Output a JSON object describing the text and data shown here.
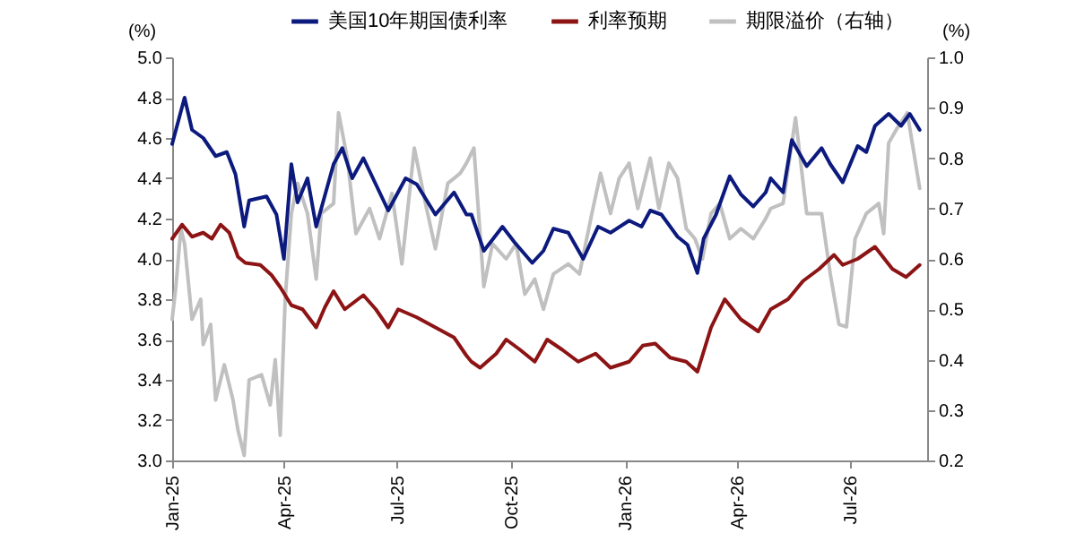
{
  "chart_data": {
    "type": "line",
    "ylabel": "(%)",
    "y2label": "(%)",
    "xlim": [
      "2025-01-01",
      "2026-09-01"
    ],
    "xticks": [
      {
        "value": "2025-01-01",
        "label": "Jan-25"
      },
      {
        "value": "2025-04-01",
        "label": "Apr-25"
      },
      {
        "value": "2025-07-01",
        "label": "Jul-25"
      },
      {
        "value": "2025-10-01",
        "label": "Oct-25"
      },
      {
        "value": "2026-01-01",
        "label": "Jan-26"
      },
      {
        "value": "2026-04-01",
        "label": "Apr-26"
      },
      {
        "value": "2026-07-01",
        "label": "Jul-26"
      }
    ],
    "ylim": [
      3,
      5
    ],
    "yticks": [
      {
        "value": 3,
        "label": "3.0"
      },
      {
        "value": 3.2,
        "label": "3.2"
      },
      {
        "value": 3.4,
        "label": "3.4"
      },
      {
        "value": 3.6,
        "label": "3.6"
      },
      {
        "value": 3.8,
        "label": "3.8"
      },
      {
        "value": 4,
        "label": "4.0"
      },
      {
        "value": 4.2,
        "label": "4.2"
      },
      {
        "value": 4.4,
        "label": "4.4"
      },
      {
        "value": 4.6,
        "label": "4.6"
      },
      {
        "value": 4.8,
        "label": "4.8"
      },
      {
        "value": 5,
        "label": "5.0"
      }
    ],
    "y2lim": [
      0.2,
      1
    ],
    "y2ticks": [
      0.2,
      0.3,
      0.4,
      0.5,
      0.6,
      0.7,
      0.8,
      0.9,
      {
        "value": 1,
        "label": "1.0"
      }
    ],
    "grid": false,
    "legend": "top",
    "line_style": "solid",
    "marker": "none",
    "series": [
      {
        "name": "美国10年期国债利率",
        "color": "#0c1a7e",
        "x": [
          "2025-01-01",
          "2025-01-11",
          "2025-01-17",
          "2025-01-26",
          "2025-02-05",
          "2025-02-14",
          "2025-02-21",
          "2025-02-28",
          "2025-03-04",
          "2025-03-18",
          "2025-03-26",
          "2025-04-01",
          "2025-04-07",
          "2025-04-12",
          "2025-04-20",
          "2025-04-27",
          "2025-05-11",
          "2025-05-18",
          "2025-05-26",
          "2025-06-04",
          "2025-06-14",
          "2025-06-24",
          "2025-07-08",
          "2025-07-17",
          "2025-08-01",
          "2025-08-16",
          "2025-08-26",
          "2025-08-30",
          "2025-09-09",
          "2025-09-24",
          "2025-10-04",
          "2025-10-18",
          "2025-10-27",
          "2025-11-04",
          "2025-11-16",
          "2025-11-28",
          "2025-12-10",
          "2025-12-20",
          "2026-01-04",
          "2026-01-14",
          "2026-01-21",
          "2026-01-30",
          "2026-02-12",
          "2026-02-20",
          "2026-02-28",
          "2026-03-05",
          "2026-03-15",
          "2026-03-26",
          "2026-04-04",
          "2026-04-14",
          "2026-04-24",
          "2026-04-28",
          "2026-05-08",
          "2026-05-15",
          "2026-05-27",
          "2026-06-08",
          "2026-06-15",
          "2026-06-25",
          "2026-07-07",
          "2026-07-14",
          "2026-07-21",
          "2026-08-01",
          "2026-08-11",
          "2026-08-18",
          "2026-08-26"
        ],
        "values": [
          4.57,
          4.8,
          4.64,
          4.6,
          4.51,
          4.53,
          4.42,
          4.16,
          4.29,
          4.31,
          4.22,
          4.0,
          4.47,
          4.28,
          4.4,
          4.16,
          4.47,
          4.55,
          4.4,
          4.5,
          4.37,
          4.24,
          4.4,
          4.37,
          4.22,
          4.33,
          4.22,
          4.22,
          4.04,
          4.16,
          4.08,
          3.98,
          4.04,
          4.15,
          4.13,
          4.0,
          4.16,
          4.13,
          4.19,
          4.16,
          4.24,
          4.22,
          4.11,
          4.07,
          3.93,
          4.1,
          4.22,
          4.41,
          4.32,
          4.26,
          4.33,
          4.4,
          4.33,
          4.59,
          4.46,
          4.55,
          4.47,
          4.38,
          4.56,
          4.53,
          4.66,
          4.72,
          4.66,
          4.72,
          4.64
        ]
      },
      {
        "name": "利率预期",
        "color": "#8c1414",
        "x": [
          "2025-01-01",
          "2025-01-09",
          "2025-01-17",
          "2025-01-26",
          "2025-02-02",
          "2025-02-09",
          "2025-02-16",
          "2025-02-23",
          "2025-03-01",
          "2025-03-13",
          "2025-03-22",
          "2025-03-29",
          "2025-04-07",
          "2025-04-16",
          "2025-04-27",
          "2025-05-04",
          "2025-05-11",
          "2025-05-20",
          "2025-06-04",
          "2025-06-14",
          "2025-06-24",
          "2025-07-02",
          "2025-07-17",
          "2025-08-01",
          "2025-08-16",
          "2025-08-26",
          "2025-08-30",
          "2025-09-06",
          "2025-09-19",
          "2025-09-27",
          "2025-10-08",
          "2025-10-20",
          "2025-10-30",
          "2025-11-11",
          "2025-11-24",
          "2025-12-08",
          "2025-12-20",
          "2026-01-04",
          "2026-01-15",
          "2026-01-25",
          "2026-02-06",
          "2026-02-19",
          "2026-02-28",
          "2026-03-11",
          "2026-03-22",
          "2026-04-04",
          "2026-04-18",
          "2026-04-28",
          "2026-05-12",
          "2026-05-24",
          "2026-06-06",
          "2026-06-18",
          "2026-06-25",
          "2026-07-07",
          "2026-07-21",
          "2026-08-04",
          "2026-08-15",
          "2026-08-26"
        ],
        "values": [
          4.1,
          4.17,
          4.11,
          4.13,
          4.1,
          4.17,
          4.13,
          4.01,
          3.98,
          3.97,
          3.92,
          3.86,
          3.77,
          3.75,
          3.66,
          3.76,
          3.84,
          3.75,
          3.82,
          3.75,
          3.66,
          3.75,
          3.71,
          3.66,
          3.61,
          3.52,
          3.49,
          3.46,
          3.53,
          3.6,
          3.55,
          3.49,
          3.6,
          3.55,
          3.49,
          3.53,
          3.46,
          3.49,
          3.57,
          3.58,
          3.51,
          3.49,
          3.44,
          3.66,
          3.8,
          3.7,
          3.64,
          3.75,
          3.8,
          3.89,
          3.95,
          4.02,
          3.97,
          4.0,
          4.06,
          3.95,
          3.91,
          3.97
        ]
      },
      {
        "name": "期限溢价（右轴）",
        "color": "#c0c0c0",
        "axis": "y2",
        "x": [
          "2025-01-01",
          "2025-01-04",
          "2025-01-08",
          "2025-01-11",
          "2025-01-17",
          "2025-01-24",
          "2025-01-26",
          "2025-02-01",
          "2025-02-05",
          "2025-02-12",
          "2025-02-19",
          "2025-02-23",
          "2025-02-28",
          "2025-03-04",
          "2025-03-14",
          "2025-03-21",
          "2025-03-25",
          "2025-03-29",
          "2025-04-02",
          "2025-04-07",
          "2025-04-12",
          "2025-04-20",
          "2025-04-27",
          "2025-05-01",
          "2025-05-11",
          "2025-05-15",
          "2025-05-22",
          "2025-05-29",
          "2025-06-09",
          "2025-06-17",
          "2025-06-27",
          "2025-07-05",
          "2025-07-15",
          "2025-07-24",
          "2025-08-01",
          "2025-08-11",
          "2025-08-21",
          "2025-08-26",
          "2025-09-01",
          "2025-09-09",
          "2025-09-16",
          "2025-09-27",
          "2025-10-05",
          "2025-10-12",
          "2025-10-20",
          "2025-10-27",
          "2025-11-04",
          "2025-11-16",
          "2025-11-25",
          "2025-12-05",
          "2025-12-12",
          "2025-12-20",
          "2025-12-27",
          "2026-01-04",
          "2026-01-11",
          "2026-01-21",
          "2026-01-28",
          "2026-02-05",
          "2026-02-12",
          "2026-02-19",
          "2026-02-26",
          "2026-03-04",
          "2026-03-11",
          "2026-03-18",
          "2026-03-26",
          "2026-04-04",
          "2026-04-14",
          "2026-04-24",
          "2026-04-28",
          "2026-05-08",
          "2026-05-18",
          "2026-05-27",
          "2026-06-08",
          "2026-06-15",
          "2026-06-22",
          "2026-06-28",
          "2026-07-05",
          "2026-07-14",
          "2026-07-24",
          "2026-07-28",
          "2026-08-01",
          "2026-08-08",
          "2026-08-16",
          "2026-08-22",
          "2026-08-26"
        ],
        "values": [
          0.48,
          0.545,
          0.66,
          0.63,
          0.48,
          0.52,
          0.43,
          0.47,
          0.32,
          0.39,
          0.32,
          0.26,
          0.21,
          0.36,
          0.37,
          0.31,
          0.4,
          0.25,
          0.52,
          0.69,
          0.75,
          0.69,
          0.56,
          0.69,
          0.71,
          0.89,
          0.8,
          0.65,
          0.7,
          0.64,
          0.73,
          0.59,
          0.82,
          0.71,
          0.62,
          0.75,
          0.77,
          0.79,
          0.82,
          0.545,
          0.63,
          0.6,
          0.63,
          0.53,
          0.56,
          0.5,
          0.57,
          0.59,
          0.57,
          0.69,
          0.77,
          0.69,
          0.76,
          0.79,
          0.7,
          0.8,
          0.7,
          0.79,
          0.76,
          0.66,
          0.64,
          0.6,
          0.69,
          0.71,
          0.64,
          0.66,
          0.64,
          0.68,
          0.7,
          0.71,
          0.88,
          0.69,
          0.69,
          0.57,
          0.47,
          0.465,
          0.64,
          0.69,
          0.71,
          0.65,
          0.83,
          0.86,
          0.89,
          0.8,
          0.74
        ]
      }
    ]
  }
}
